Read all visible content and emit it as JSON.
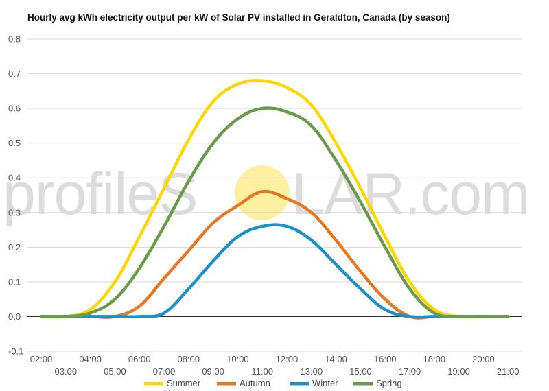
{
  "chart_data": {
    "type": "line",
    "title": "Hourly avg kWh electricity output per kW of Solar PV installed in Geraldton, Canada (by season)",
    "xlabel": "",
    "ylabel": "",
    "ylim": [
      -0.1,
      0.8
    ],
    "yticks": [
      "-0.1",
      "0.0",
      "0.1",
      "0.2",
      "0.3",
      "0.4",
      "0.5",
      "0.6",
      "0.7",
      "0.8"
    ],
    "x": [
      "02:00",
      "03:00",
      "04:00",
      "05:00",
      "06:00",
      "07:00",
      "08:00",
      "09:00",
      "10:00",
      "11:00",
      "12:00",
      "13:00",
      "14:00",
      "15:00",
      "16:00",
      "17:00",
      "18:00",
      "19:00",
      "20:00",
      "21:00"
    ],
    "grid": true,
    "legend_position": "bottom",
    "series": [
      {
        "name": "Summer",
        "color": "#FFD700",
        "values": [
          0.0,
          0.0,
          0.02,
          0.1,
          0.23,
          0.37,
          0.51,
          0.62,
          0.67,
          0.68,
          0.66,
          0.61,
          0.5,
          0.37,
          0.23,
          0.1,
          0.02,
          0.0,
          0.0,
          0.0
        ]
      },
      {
        "name": "Autumn",
        "color": "#E87722",
        "values": [
          0.0,
          0.0,
          0.0,
          0.0,
          0.03,
          0.11,
          0.19,
          0.27,
          0.32,
          0.36,
          0.34,
          0.3,
          0.22,
          0.13,
          0.05,
          0.0,
          0.0,
          0.0,
          0.0,
          0.0
        ]
      },
      {
        "name": "Winter",
        "color": "#1E90C8",
        "values": [
          0.0,
          0.0,
          0.0,
          0.0,
          0.0,
          0.01,
          0.08,
          0.16,
          0.23,
          0.26,
          0.26,
          0.22,
          0.15,
          0.08,
          0.02,
          0.0,
          0.0,
          0.0,
          0.0,
          0.0
        ]
      },
      {
        "name": "Spring",
        "color": "#6A9A4A",
        "values": [
          0.0,
          0.0,
          0.01,
          0.05,
          0.14,
          0.26,
          0.39,
          0.5,
          0.57,
          0.6,
          0.59,
          0.55,
          0.45,
          0.33,
          0.2,
          0.08,
          0.01,
          0.0,
          0.0,
          0.0
        ]
      }
    ]
  },
  "watermark": {
    "before": "profileS",
    "after": "LAR.com",
    "sun_color": "#FFEFA0"
  }
}
